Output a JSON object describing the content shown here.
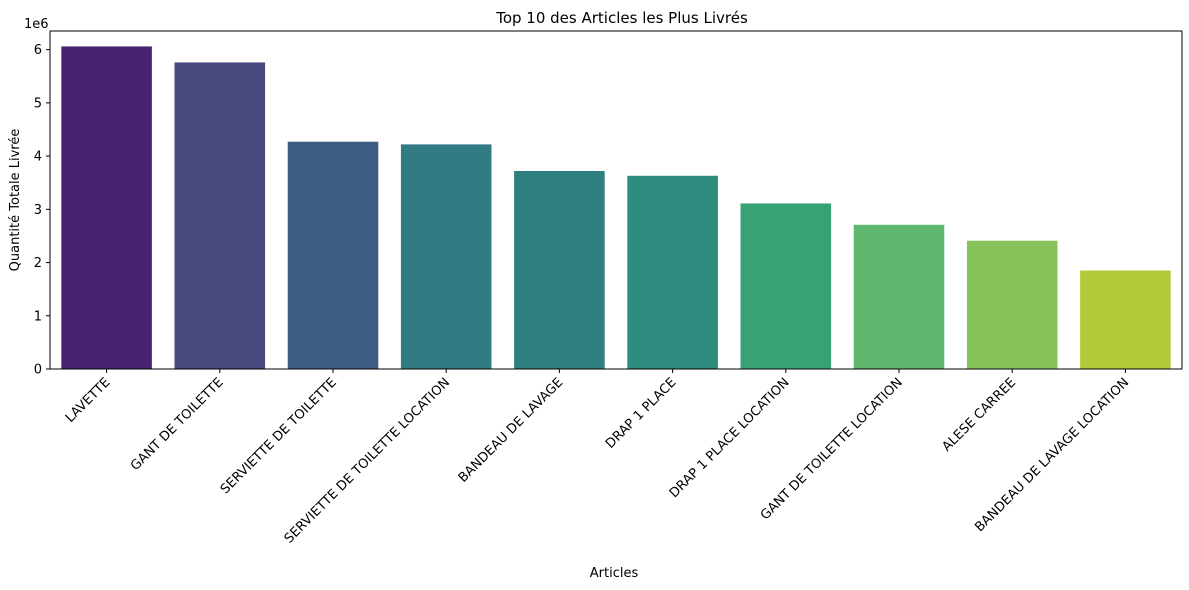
{
  "chart_data": {
    "type": "bar",
    "title": "Top 10 des Articles les Plus Livrés",
    "xlabel": "Articles",
    "ylabel": "Quantité Totale Livrée",
    "y_offset_text": "1e6",
    "categories": [
      "LAVETTE",
      "GANT DE TOILETTE",
      "SERVIETTE DE TOILETTE",
      "SERVIETTE DE TOILETTE LOCATION",
      "BANDEAU DE LAVAGE",
      "DRAP 1 PLACE",
      "DRAP 1 PLACE LOCATION",
      "GANT DE TOILETTE LOCATION",
      "ALESE CARREE",
      "BANDEAU DE LAVAGE LOCATION"
    ],
    "values": [
      6060000,
      5760000,
      4270000,
      4220000,
      3720000,
      3630000,
      3110000,
      2710000,
      2410000,
      1850000
    ],
    "colors": [
      "#482374",
      "#46487e",
      "#3f5c82",
      "#337b84",
      "#2e7f80",
      "#2e8c7e",
      "#38a275",
      "#5fb86d",
      "#86c45b",
      "#b4c93a"
    ],
    "ylim": [
      0,
      6350000
    ],
    "yticks": [
      0,
      1,
      2,
      3,
      4,
      5,
      6
    ],
    "grid": false,
    "legend": "none"
  }
}
